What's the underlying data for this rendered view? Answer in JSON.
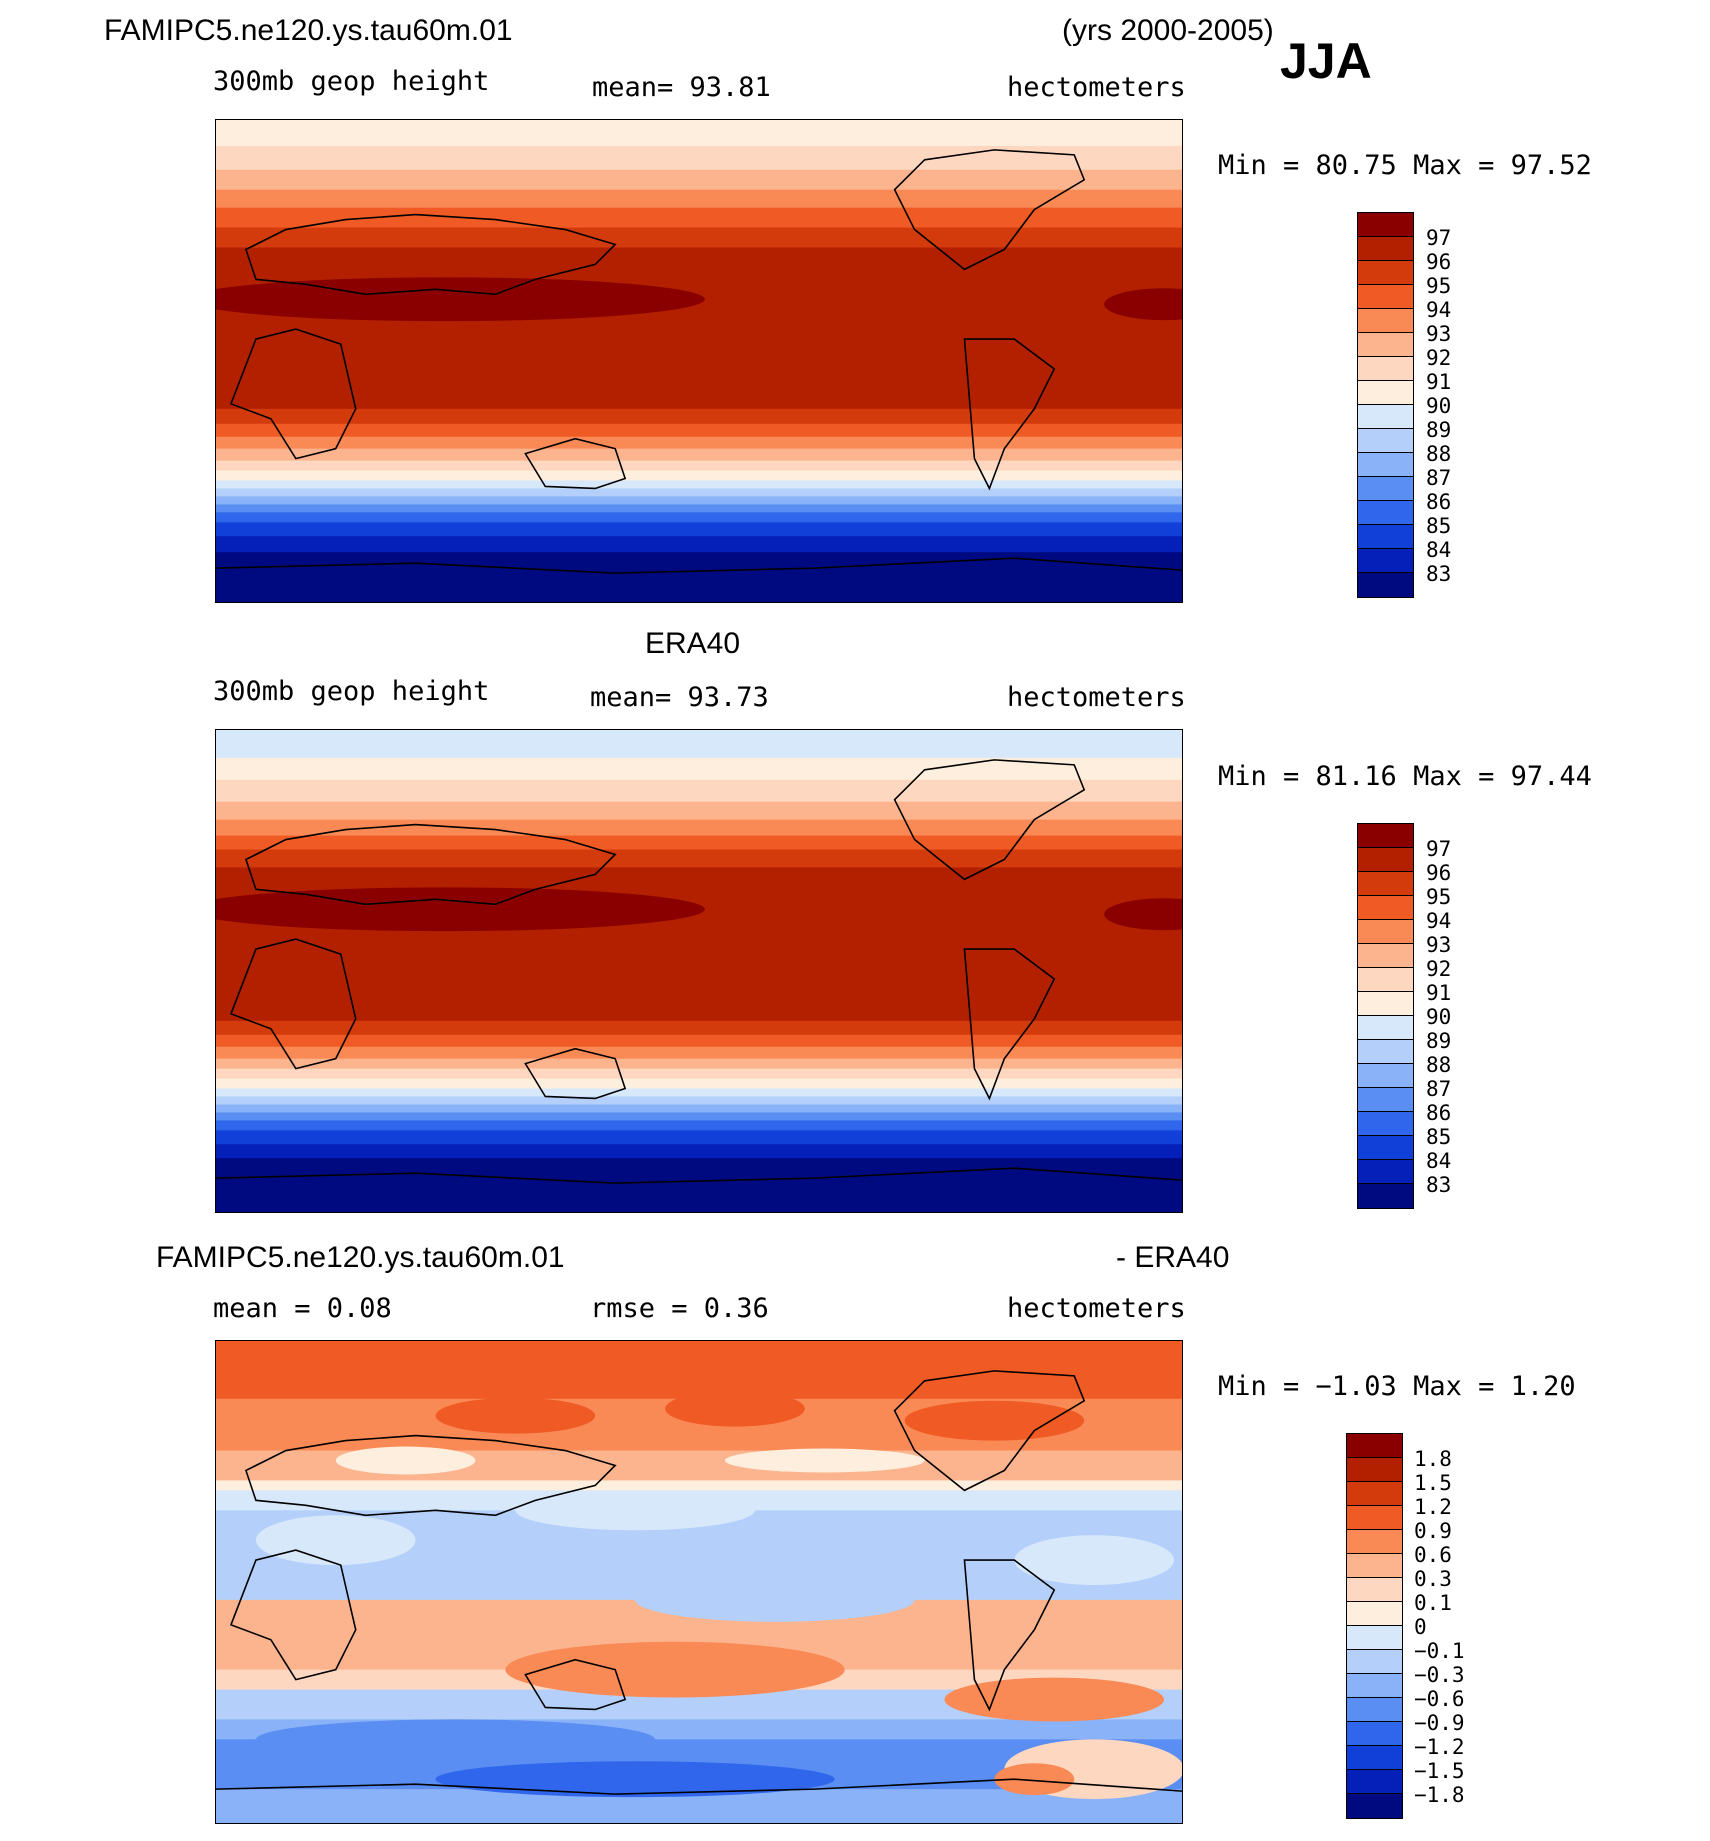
{
  "header": {
    "case": "FAMIPC5.ne120.ys.tau60m.01",
    "years": "(yrs 2000-2005)",
    "season": "JJA"
  },
  "panels": [
    {
      "title": "",
      "variable": "300mb geop height",
      "stat": "mean=   93.81",
      "units": "hectometers",
      "minmax": "Min =   80.75 Max =   97.52",
      "pattern": "model"
    },
    {
      "title": "ERA40",
      "variable": "300mb geop height",
      "stat": "mean=   93.73",
      "units": "hectometers",
      "minmax": "Min =   81.16 Max =   97.44",
      "pattern": "obs"
    },
    {
      "title_left": "FAMIPC5.ne120.ys.tau60m.01",
      "title_right": "- ERA40",
      "stat_mean": "mean =    0.08",
      "stat_rmse": "rmse =    0.36",
      "units": "hectometers",
      "minmax": "Min =   −1.03 Max =    1.20",
      "pattern": "diff"
    }
  ],
  "colorbar_abs": {
    "labels": [
      "97",
      "96",
      "95",
      "94",
      "93",
      "92",
      "91",
      "90",
      "89",
      "88",
      "87",
      "86",
      "85",
      "84",
      "83"
    ],
    "colors": [
      "#8a0000",
      "#b32000",
      "#d33a0c",
      "#f05a24",
      "#fa8a55",
      "#fcb48f",
      "#fdd7bf",
      "#fdeedd",
      "#d7e8fb",
      "#b4d0fa",
      "#8ab2f8",
      "#5a8ef3",
      "#2f66ec",
      "#1040d8",
      "#0420b8",
      "#000a80"
    ]
  },
  "colorbar_diff": {
    "labels": [
      "1.8",
      "1.5",
      "1.2",
      "0.9",
      "0.6",
      "0.3",
      "0.1",
      "0",
      "−0.1",
      "−0.3",
      "−0.6",
      "−0.9",
      "−1.2",
      "−1.5",
      "−1.8"
    ],
    "colors": [
      "#8a0000",
      "#b32000",
      "#d33a0c",
      "#f05a24",
      "#fa8a55",
      "#fcb48f",
      "#fdd7bf",
      "#fdeedd",
      "#d7e8fb",
      "#b4d0fa",
      "#8ab2f8",
      "#5a8ef3",
      "#2f66ec",
      "#1040d8",
      "#0420b8",
      "#000a80"
    ]
  }
}
